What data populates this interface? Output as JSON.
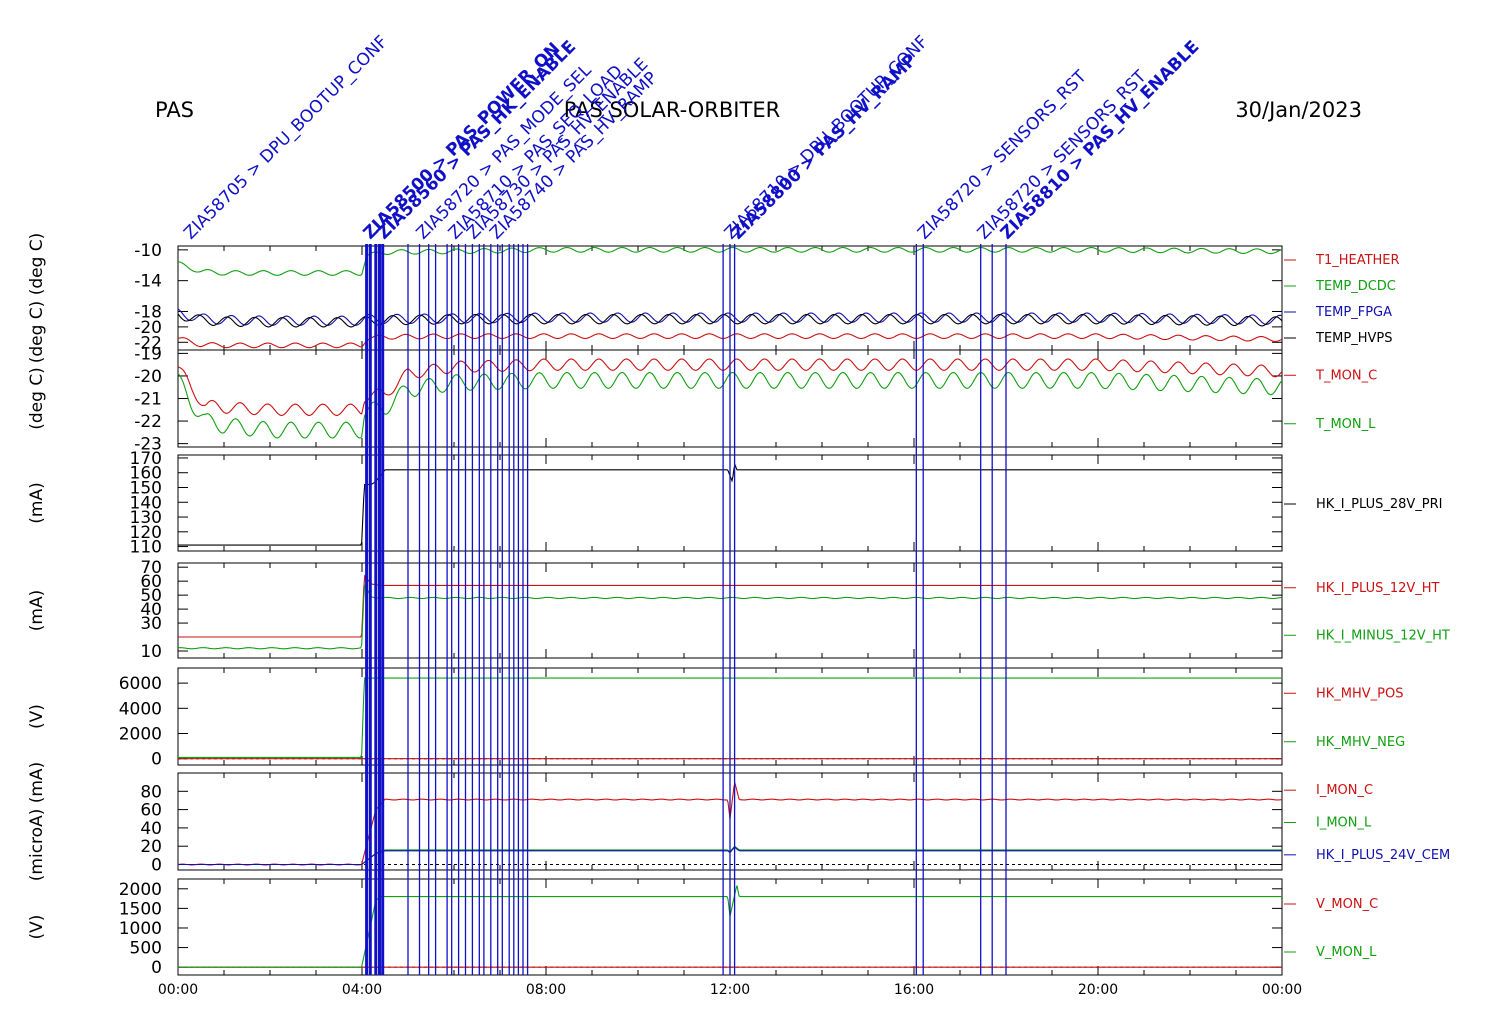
{
  "header": {
    "instrument": "PAS",
    "mission": "PAS  SOLAR-ORBITER",
    "date": "30/Jan/2023"
  },
  "time_axis": {
    "start_hour": 0,
    "end_hour": 24,
    "tick_labels": [
      "00:00",
      "04:00",
      "08:00",
      "12:00",
      "16:00",
      "20:00",
      "00:00"
    ]
  },
  "event_labels": [
    {
      "t": 0.15,
      "text": "ZIA58705 > DPU_BOOTUP_CONF",
      "bold": false
    },
    {
      "t": 4.05,
      "text": "ZIA58500 > PAS_POWER_ON",
      "bold": true
    },
    {
      "t": 4.35,
      "text": "ZIA58560 > PAS_HK_ENABLE",
      "bold": true
    },
    {
      "t": 5.2,
      "text": "ZIA58720 > PAS_MODE_SEL",
      "bold": false
    },
    {
      "t": 5.9,
      "text": "ZIA58710 > PAS_SEQ_LOAD",
      "bold": false
    },
    {
      "t": 6.3,
      "text": "ZIA58730 > PAS_HV_ENABLE",
      "bold": false
    },
    {
      "t": 6.8,
      "text": "ZIA58740 > PAS_HV_RAMP",
      "bold": false
    },
    {
      "t": 11.9,
      "text": "ZIA58710 > DPU_BOOTUP_CONF",
      "bold": false
    },
    {
      "t": 12.05,
      "text": "ZIA58800 > PAS_HV_RAMP",
      "bold": true
    },
    {
      "t": 16.1,
      "text": "ZIA58720 > SENSORS_RST",
      "bold": false
    },
    {
      "t": 17.4,
      "text": "ZIA58720 > SENSORS_RST",
      "bold": false
    },
    {
      "t": 17.9,
      "text": "ZIA58810 > PAS_HV_ENABLE",
      "bold": true
    }
  ],
  "event_lines": [
    4.1,
    4.18,
    4.3,
    4.38,
    4.45,
    5.0,
    5.25,
    5.45,
    5.6,
    5.85,
    5.95,
    6.1,
    6.25,
    6.4,
    6.55,
    6.65,
    6.8,
    6.95,
    7.05,
    7.2,
    7.3,
    7.4,
    7.5,
    7.6,
    11.85,
    12.0,
    12.1,
    16.05,
    16.2,
    17.45,
    17.7,
    18.0
  ],
  "chart_data": [
    {
      "type": "line",
      "ylabel": "(deg C) (deg C)",
      "yticks": [
        -10,
        -14,
        -18,
        -20,
        -22
      ],
      "ytick_labels": [
        "-10",
        "-14",
        "-18",
        "-20",
        "-22"
      ],
      "ylim": [
        -23,
        -9.5
      ],
      "legend_placement": "right",
      "series": [
        {
          "name": "T1_HEATHER",
          "color": "#cc1111",
          "x": [
            0,
            0.5,
            1,
            2,
            3,
            3.99,
            4.1,
            4.5,
            6,
            8,
            12,
            16,
            20,
            24
          ],
          "y": [
            -21.5,
            -22.3,
            -22.4,
            -22.4,
            -22.4,
            -22.4,
            -21.5,
            -21.3,
            -21.2,
            -21.2,
            -21.2,
            -21.2,
            -21.2,
            -21.6
          ],
          "osc_amp": 0.3,
          "osc_period": 0.6
        },
        {
          "name": "TEMP_DCDC",
          "color": "#10a010",
          "x": [
            0,
            0.5,
            1,
            2,
            3,
            3.99,
            4.1,
            4.5,
            6,
            8,
            12,
            16,
            20,
            24
          ],
          "y": [
            -11.8,
            -12.8,
            -13.0,
            -13.0,
            -13.0,
            -13.0,
            -10.8,
            -10.3,
            -10.2,
            -10.0,
            -10.0,
            -10.0,
            -10.0,
            -10.2
          ],
          "osc_amp": 0.3,
          "osc_period": 0.6
        },
        {
          "name": "TEMP_FPGA",
          "color": "#1010b0",
          "x": [
            0,
            0.5,
            1,
            2,
            3,
            3.99,
            4.1,
            6,
            8,
            12,
            16,
            20,
            24
          ],
          "y": [
            -18.2,
            -18.9,
            -19.1,
            -19.2,
            -19.2,
            -19.2,
            -19.0,
            -18.9,
            -18.8,
            -18.8,
            -18.8,
            -18.8,
            -19.1
          ],
          "osc_amp": 0.6,
          "osc_period": 0.6
        },
        {
          "name": "TEMP_HVPS",
          "color": "#000000",
          "x": [
            0,
            0.5,
            1,
            2,
            3,
            3.99,
            4.1,
            6,
            8,
            12,
            16,
            20,
            24
          ],
          "y": [
            -18.4,
            -19.1,
            -19.3,
            -19.4,
            -19.4,
            -19.4,
            -19.2,
            -19.0,
            -19.0,
            -19.0,
            -19.0,
            -19.0,
            -19.3
          ],
          "osc_amp": 0.6,
          "osc_period": 0.6
        }
      ]
    },
    {
      "type": "line",
      "ylabel": "(deg C)",
      "yticks": [
        -19,
        -20,
        -21,
        -22,
        -23
      ],
      "ytick_labels": [
        "-19",
        "-20",
        "-21",
        "-22",
        "-23"
      ],
      "ylim": [
        -23.15,
        -18.85
      ],
      "legend_placement": "right",
      "series": [
        {
          "name": "T_MON_C",
          "color": "#cc1111",
          "x": [
            0,
            0.3,
            0.6,
            1,
            2,
            3,
            3.99,
            4.05,
            4.5,
            5,
            6,
            8,
            12,
            16,
            20,
            24
          ],
          "y": [
            -19.6,
            -20.6,
            -21.3,
            -21.4,
            -21.5,
            -21.5,
            -21.5,
            -20.9,
            -20.8,
            -19.9,
            -19.6,
            -19.5,
            -19.5,
            -19.5,
            -19.5,
            -19.8
          ],
          "osc_amp": 0.25,
          "osc_period": 0.6
        },
        {
          "name": "T_MON_L",
          "color": "#10a010",
          "x": [
            0,
            0.3,
            0.6,
            1,
            2,
            3,
            3.99,
            4.05,
            4.5,
            5,
            6,
            8,
            12,
            16,
            20,
            24
          ],
          "y": [
            -20.2,
            -21.2,
            -22.0,
            -22.2,
            -22.4,
            -22.4,
            -22.4,
            -21.6,
            -21.4,
            -20.6,
            -20.3,
            -20.2,
            -20.2,
            -20.2,
            -20.2,
            -20.5
          ],
          "osc_amp": 0.35,
          "osc_period": 0.6
        }
      ]
    },
    {
      "type": "line",
      "ylabel": "(mA)",
      "yticks": [
        170,
        160,
        150,
        140,
        130,
        120,
        110
      ],
      "ytick_labels": [
        "170",
        "160",
        "150",
        "140",
        "130",
        "120",
        "110"
      ],
      "ylim": [
        107,
        172
      ],
      "legend_placement": "right",
      "series": [
        {
          "name": "HK_I_PLUS_28V_PRI",
          "color": "#000000",
          "x": [
            0,
            3.99,
            4.05,
            4.08,
            4.2,
            4.3,
            4.5,
            4.55,
            11.95,
            12.05,
            12.1,
            12.15,
            24
          ],
          "y": [
            111,
            111,
            152,
            152,
            152,
            154,
            162,
            162,
            162,
            154,
            166,
            162,
            162
          ],
          "osc_amp": 0,
          "osc_period": 1
        }
      ]
    },
    {
      "type": "line",
      "ylabel": "(mA)",
      "yticks": [
        70,
        60,
        50,
        40,
        30,
        10
      ],
      "ytick_labels": [
        "70",
        "60",
        "50",
        "40",
        "30",
        "10"
      ],
      "ylim": [
        5,
        73
      ],
      "legend_placement": "right",
      "series": [
        {
          "name": "HK_I_PLUS_12V_HT",
          "color": "#cc1111",
          "x": [
            0,
            3.99,
            4.05,
            4.2,
            4.4,
            24
          ],
          "y": [
            20,
            20,
            64,
            58,
            57,
            57
          ],
          "osc_amp": 0,
          "osc_period": 1
        },
        {
          "name": "HK_I_MINUS_12V_HT",
          "color": "#10a010",
          "x": [
            0,
            3.99,
            4.05,
            4.2,
            4.4,
            24
          ],
          "y": [
            12,
            12,
            57,
            49,
            48,
            48
          ],
          "osc_amp": 0.4,
          "osc_period": 0.5
        }
      ]
    },
    {
      "type": "line",
      "ylabel": "(V)",
      "yticks": [
        6000,
        4000,
        2000,
        0
      ],
      "ytick_labels": [
        "6000",
        "4000",
        "2000",
        "0"
      ],
      "ylim": [
        -500,
        7200
      ],
      "legend_placement": "right",
      "series": [
        {
          "name": "HK_MHV_POS",
          "color": "#cc1111",
          "x": [
            0,
            24
          ],
          "y": [
            0,
            0
          ],
          "osc_amp": 0,
          "osc_period": 1
        },
        {
          "name": "HK_MHV_NEG",
          "color": "#10a010",
          "x": [
            0,
            3.99,
            4.05,
            24
          ],
          "y": [
            100,
            100,
            6400,
            6400
          ],
          "osc_amp": 0,
          "osc_period": 1
        }
      ]
    },
    {
      "type": "line",
      "ylabel": "(microA) (mA)",
      "yticks": [
        80,
        60,
        40,
        20,
        0
      ],
      "ytick_labels": [
        "80",
        "60",
        "40",
        "20",
        "0"
      ],
      "ylim": [
        -6,
        100
      ],
      "legend_placement": "right",
      "series": [
        {
          "name": "I_MON_C",
          "color": "#cc1111",
          "x": [
            0,
            3.99,
            4.3,
            4.5,
            11.95,
            12.0,
            12.1,
            12.2,
            24
          ],
          "y": [
            0,
            0,
            60,
            71,
            71,
            50,
            90,
            71,
            71
          ],
          "osc_amp": 0.4,
          "osc_period": 0.4
        },
        {
          "name": "I_MON_L",
          "color": "#10a010",
          "x": [
            0,
            3.99,
            4.3,
            4.5,
            11.95,
            12.0,
            12.1,
            12.2,
            24
          ],
          "y": [
            0,
            0,
            12,
            16,
            16,
            14,
            20,
            16,
            16
          ],
          "osc_amp": 0,
          "osc_period": 1
        },
        {
          "name": "HK_I_PLUS_24V_CEM",
          "color": "#1010b0",
          "x": [
            0,
            3.99,
            4.3,
            4.5,
            11.95,
            12.0,
            12.1,
            12.2,
            24
          ],
          "y": [
            0,
            0,
            12,
            15,
            15,
            13,
            19,
            15,
            15
          ],
          "osc_amp": 0,
          "osc_period": 1
        }
      ]
    },
    {
      "type": "line",
      "ylabel": "(V)",
      "yticks": [
        2000,
        1500,
        1000,
        500,
        0
      ],
      "ytick_labels": [
        "2000",
        "1500",
        "1000",
        "500",
        "0"
      ],
      "ylim": [
        -200,
        2250
      ],
      "legend_placement": "right",
      "series": [
        {
          "name": "V_MON_C",
          "color": "#cc1111",
          "x": [
            0,
            24
          ],
          "y": [
            0,
            0
          ],
          "osc_amp": 0,
          "osc_period": 1
        },
        {
          "name": "V_MON_L",
          "color": "#10a010",
          "x": [
            0,
            3.99,
            4.3,
            4.4,
            11.95,
            12.0,
            12.15,
            12.2,
            24
          ],
          "y": [
            0,
            0,
            1700,
            1800,
            1800,
            1300,
            2100,
            1800,
            1800
          ],
          "osc_amp": 0,
          "osc_period": 1
        }
      ]
    }
  ]
}
